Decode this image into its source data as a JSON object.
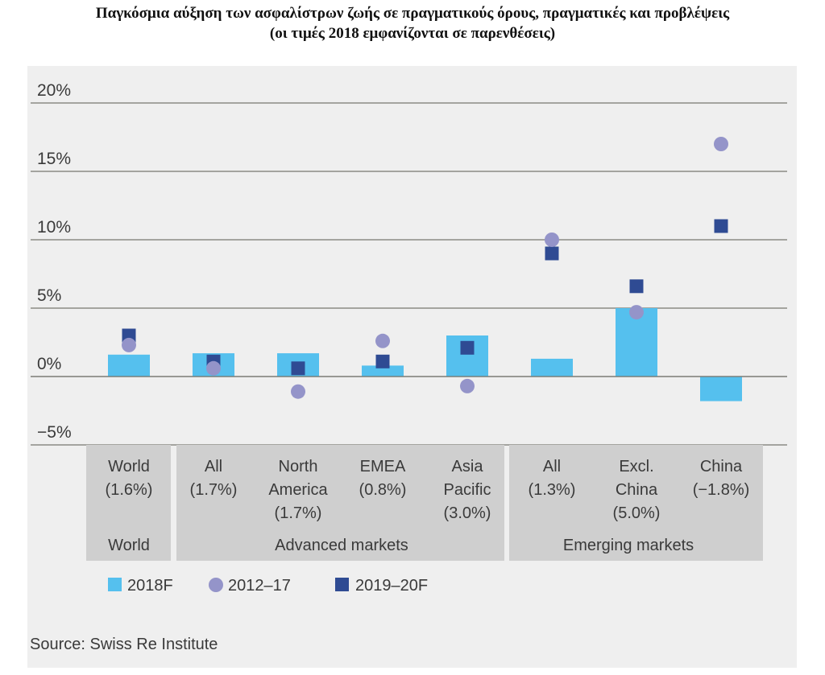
{
  "title": {
    "line1": "Παγκόσμια αύξηση των ασφαλίστρων ζωής σε πραγματικούς όρους, πραγματικές και προβλέψεις",
    "line2": "(οι τιμές 2018 εμφανίζονται σε παρενθέσεις)"
  },
  "chart_data": {
    "type": "bar",
    "ylim": [
      -5,
      20
    ],
    "yticks": [
      20,
      15,
      10,
      5,
      0,
      -5
    ],
    "ytick_labels": [
      "20%",
      "15%",
      "10%",
      "5%",
      "0%",
      "−5%"
    ],
    "grid": true,
    "categories": [
      {
        "lines": [
          "World",
          "(1.6%)"
        ],
        "group": "World"
      },
      {
        "lines": [
          "All",
          "(1.7%)"
        ],
        "group": "Advanced markets"
      },
      {
        "lines": [
          "North",
          "America",
          "(1.7%)"
        ],
        "group": "Advanced markets"
      },
      {
        "lines": [
          "EMEA",
          "(0.8%)"
        ],
        "group": "Advanced markets"
      },
      {
        "lines": [
          "Asia",
          "Pacific",
          "(3.0%)"
        ],
        "group": "Advanced markets"
      },
      {
        "lines": [
          "All",
          "(1.3%)"
        ],
        "group": "Emerging markets"
      },
      {
        "lines": [
          "Excl.",
          "China",
          "(5.0%)"
        ],
        "group": "Emerging markets"
      },
      {
        "lines": [
          "China",
          "(−1.8%)"
        ],
        "group": "Emerging markets"
      }
    ],
    "groups": [
      {
        "label": "World",
        "span": [
          0,
          0
        ]
      },
      {
        "label": "Advanced markets",
        "span": [
          1,
          4
        ]
      },
      {
        "label": "Emerging markets",
        "span": [
          5,
          7
        ]
      }
    ],
    "series": [
      {
        "name": "2018F",
        "kind": "bar",
        "color": "#55c0ee",
        "values": [
          1.6,
          1.7,
          1.7,
          0.8,
          3.0,
          1.3,
          5.0,
          -1.8
        ]
      },
      {
        "name": "2012–17",
        "kind": "circle",
        "color": "#9494c9",
        "values": [
          2.3,
          0.6,
          -1.1,
          2.6,
          -0.7,
          10.0,
          4.7,
          17.0
        ]
      },
      {
        "name": "2019–20F",
        "kind": "square",
        "color": "#2f4b93",
        "values": [
          3.0,
          1.1,
          0.6,
          1.1,
          2.1,
          9.0,
          6.6,
          11.0
        ]
      }
    ],
    "legend_position": "bottom-left",
    "source": "Source: Swiss Re Institute"
  }
}
